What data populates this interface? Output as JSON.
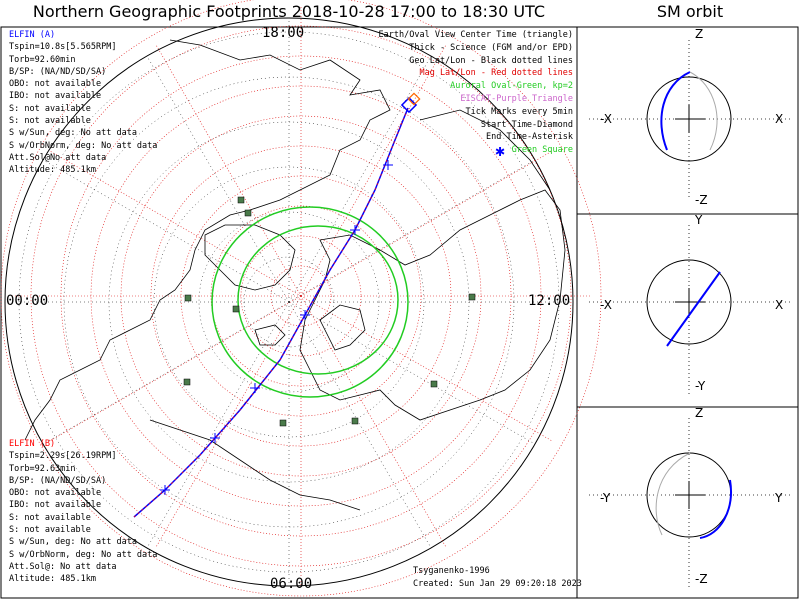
{
  "header": {
    "title": "Northern Geographic Footprints 2018-10-28 17:00 to 18:30 UTC",
    "orbit_title": "SM orbit"
  },
  "clock": {
    "top": "18:00",
    "left": "00:00",
    "right": "12:00",
    "bottom": "06:00"
  },
  "elfin_a": {
    "name": "ELFIN (A)",
    "lines": [
      "Tspin=10.8s[5.565RPM]",
      "Torb=92.60min",
      "B/SP: (NA/ND/SD/SA)",
      "OBO: not available",
      "IBO: not available",
      "S: not available",
      "S: not available",
      "S w/Sun, deg: No att data",
      "S w/OrbNorm, deg: No att data",
      "Att.Sol@No att data",
      "Altitude: 485.1km"
    ]
  },
  "elfin_b": {
    "name": "ELFIN (B)",
    "lines": [
      "Tspin=2.29s[26.19RPM]",
      "Torb=92.63min",
      "B/SP: (NA/ND/SD/SA)",
      "OBO: not available",
      "IBO: not available",
      "S: not available",
      "S: not available",
      "S w/Sun, deg: No att data",
      "S w/OrbNorm, deg: No att data",
      "Att.Sol@: No att data",
      "Altitude: 485.1km"
    ]
  },
  "legend": [
    {
      "text": "Earth/Oval View Center Time (triangle)",
      "color": "#000000"
    },
    {
      "text": "Thick - Science (FGM and/or EPD)",
      "color": "#000000"
    },
    {
      "text": "Geo Lat/Lon - Black dotted lines",
      "color": "#000000"
    },
    {
      "text": "Mag Lat/Lon - Red dotted lines",
      "color": "#e00000"
    },
    {
      "text": "Auroral Oval-Green, kp=2",
      "color": "#22cc22"
    },
    {
      "text": "EISCAT-Purple Triangle",
      "color": "#cc66cc"
    },
    {
      "text": "Tick Marks every 5min",
      "color": "#000000"
    },
    {
      "text": "Start Time-Diamond",
      "color": "#000000"
    },
    {
      "text": "End Time-Asterisk",
      "color": "#000000"
    },
    {
      "text": "Green Square",
      "color": "#22cc22"
    }
  ],
  "footer": {
    "credit": "Tsyganenko-1996",
    "created": "Created: Sun Jan 29 09:20:18 2023"
  },
  "orbit_panels": [
    {
      "top": "Z",
      "bottom": "-Z",
      "left": "-X",
      "right": "X"
    },
    {
      "top": "Y",
      "bottom": "-Y",
      "left": "-X",
      "right": "X"
    },
    {
      "top": "Z",
      "bottom": "-Z",
      "left": "-Y",
      "right": "Y"
    }
  ],
  "colors": {
    "elfin_a": "#0000ff",
    "elfin_b": "#ff0000",
    "oval": "#22cc22",
    "mag_grid": "#dd0000",
    "station": "#4a7a4a"
  }
}
